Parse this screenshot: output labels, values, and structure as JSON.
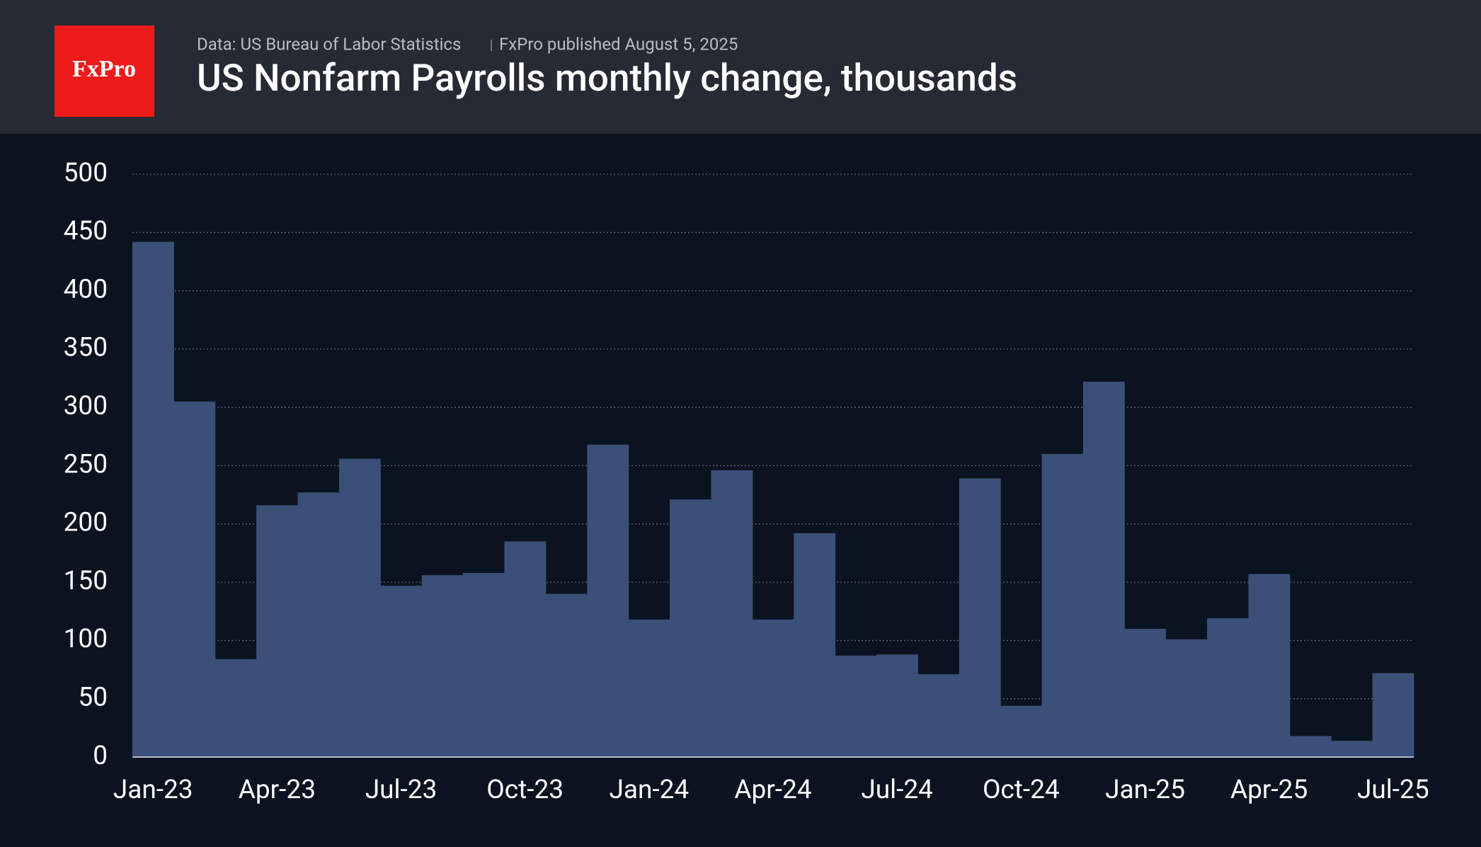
{
  "logo": "FxPro",
  "chart_data": {
    "type": "bar",
    "source": "Data: US Bureau of Labor Statistics",
    "published": "FxPro published August 5, 2025",
    "title": "US Nonfarm Payrolls monthly change, thousands",
    "categories": [
      "Jan-23",
      null,
      null,
      "Apr-23",
      null,
      null,
      "Jul-23",
      null,
      null,
      "Oct-23",
      null,
      null,
      "Jan-24",
      null,
      null,
      "Apr-24",
      null,
      null,
      "Jul-24",
      null,
      null,
      "Oct-24",
      null,
      null,
      "Jan-25",
      null,
      null,
      "Apr-25",
      null,
      null,
      "Jul-25"
    ],
    "values": [
      442,
      305,
      84,
      216,
      227,
      256,
      147,
      156,
      158,
      185,
      140,
      268,
      118,
      221,
      246,
      118,
      192,
      87,
      88,
      71,
      239,
      44,
      260,
      322,
      110,
      101,
      119,
      157,
      18,
      14,
      72
    ],
    "color": "#3b5078",
    "ylim": [
      0,
      500
    ],
    "yticks": [
      0,
      50,
      100,
      150,
      200,
      250,
      300,
      350,
      400,
      450,
      500
    ],
    "grid": true
  }
}
